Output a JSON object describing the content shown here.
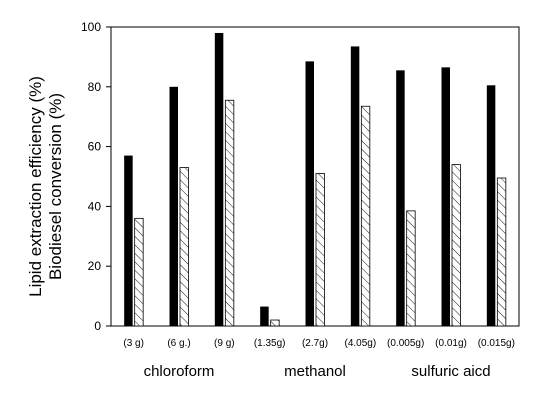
{
  "chart_data": {
    "type": "bar",
    "ylabel_lines": [
      "Lipid extraction efficiency (%)",
      "Biodiesel conversion (%)"
    ],
    "xlabel": "",
    "ylim": [
      0,
      100
    ],
    "yticks": [
      "0",
      "20",
      "40",
      "60",
      "80",
      "100"
    ],
    "categories": [
      "(3 g)",
      "(6 g.)",
      "(9 g)",
      "(1.35g)",
      "(2.7g)",
      "(4.05g)",
      "(0.005g)",
      "(0.01g)",
      "(0.015g)"
    ],
    "groups": [
      {
        "label": "chloroform",
        "from": 0,
        "to": 2
      },
      {
        "label": "methanol",
        "from": 3,
        "to": 5
      },
      {
        "label": "sulfuric aicd",
        "from": 6,
        "to": 8
      }
    ],
    "series": [
      {
        "values": [
          57,
          80,
          98,
          6.5,
          88.5,
          93.5,
          85.5,
          86.5,
          80.5
        ],
        "fill": "#000000"
      },
      {
        "values": [
          36,
          53,
          75.5,
          2,
          51,
          73.5,
          38.5,
          54,
          49.5
        ],
        "fill": "hatch"
      }
    ],
    "grid": false,
    "legend": "none"
  }
}
